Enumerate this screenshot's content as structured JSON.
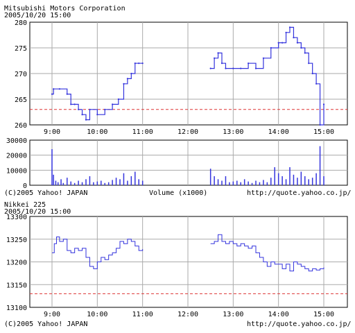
{
  "stock_chart": {
    "title": "Mitsubishi Motors Corporation",
    "date": "2005/10/20 15:00",
    "copyright": "(C)2005 Yahoo! JAPAN",
    "volume_label": "Volume (x1000)",
    "source_url": "http://quote.yahoo.co.jp/"
  },
  "nikkei_chart": {
    "title": "Nikkei 225",
    "date": "2005/10/20 15:00",
    "copyright": "(C)2005 Yahoo! JAPAN",
    "source_url": "http://quote.yahoo.co.jp/"
  },
  "colors": {
    "line": "#3333dd",
    "reference": "#dd3333",
    "grid": "#aaaaaa"
  },
  "chart_data": [
    {
      "type": "line",
      "title": "Mitsubishi Motors Corporation",
      "x_ticks": [
        "9:00",
        "10:00",
        "11:00",
        "12:00",
        "13:00",
        "14:00",
        "15:00"
      ],
      "y_ticks": [
        260,
        265,
        270,
        275,
        280
      ],
      "xlim": [
        "9:00",
        "15:00"
      ],
      "ylim": [
        260,
        280
      ],
      "grid": true,
      "reference_line": 263,
      "series": [
        {
          "segments": [
            [
              [
                "9:00",
                266
              ],
              [
                "9:02",
                267
              ],
              [
                "9:10",
                267
              ],
              [
                "9:20",
                266
              ],
              [
                "9:25",
                264
              ],
              [
                "9:30",
                264
              ],
              [
                "9:35",
                263
              ],
              [
                "9:40",
                262
              ],
              [
                "9:45",
                261
              ],
              [
                "9:50",
                263
              ],
              [
                "10:00",
                262
              ],
              [
                "10:10",
                263
              ],
              [
                "10:20",
                264
              ],
              [
                "10:28",
                265
              ],
              [
                "10:35",
                268
              ],
              [
                "10:40",
                269
              ],
              [
                "10:45",
                270
              ],
              [
                "10:50",
                272
              ],
              [
                "10:55",
                272
              ],
              [
                "11:00",
                272
              ]
            ],
            [
              [
                "12:30",
                271
              ],
              [
                "12:35",
                273
              ],
              [
                "12:40",
                274
              ],
              [
                "12:45",
                272
              ],
              [
                "12:50",
                271
              ],
              [
                "13:00",
                271
              ],
              [
                "13:10",
                271
              ],
              [
                "13:20",
                272
              ],
              [
                "13:30",
                271
              ],
              [
                "13:40",
                273
              ],
              [
                "13:50",
                275
              ],
              [
                "14:00",
                276
              ],
              [
                "14:05",
                276
              ],
              [
                "14:10",
                278
              ],
              [
                "14:15",
                279
              ],
              [
                "14:20",
                277
              ],
              [
                "14:25",
                276
              ],
              [
                "14:30",
                275
              ],
              [
                "14:35",
                274
              ],
              [
                "14:40",
                272
              ],
              [
                "14:45",
                270
              ],
              [
                "14:50",
                268
              ],
              [
                "14:55",
                260
              ],
              [
                "15:00",
                264
              ]
            ]
          ]
        }
      ]
    },
    {
      "type": "bar",
      "title": "Volume (x1000)",
      "y_ticks": [
        0,
        10000,
        20000,
        30000
      ],
      "ylim": [
        0,
        30000
      ],
      "xlim": [
        "9:00",
        "15:00"
      ],
      "grid": true,
      "bars": [
        [
          "9:00",
          24000
        ],
        [
          "9:02",
          7000
        ],
        [
          "9:05",
          3000
        ],
        [
          "9:08",
          2000
        ],
        [
          "9:12",
          4000
        ],
        [
          "9:15",
          1500
        ],
        [
          "9:20",
          5000
        ],
        [
          "9:25",
          2500
        ],
        [
          "9:30",
          1500
        ],
        [
          "9:35",
          3000
        ],
        [
          "9:40",
          2000
        ],
        [
          "9:45",
          4000
        ],
        [
          "9:50",
          6000
        ],
        [
          "9:55",
          2000
        ],
        [
          "10:00",
          2500
        ],
        [
          "10:05",
          3000
        ],
        [
          "10:10",
          1500
        ],
        [
          "10:15",
          2000
        ],
        [
          "10:20",
          3500
        ],
        [
          "10:25",
          5000
        ],
        [
          "10:30",
          4000
        ],
        [
          "10:35",
          8000
        ],
        [
          "10:40",
          3000
        ],
        [
          "10:45",
          6000
        ],
        [
          "10:50",
          9000
        ],
        [
          "10:55",
          4000
        ],
        [
          "11:00",
          3000
        ],
        [
          "12:30",
          11000
        ],
        [
          "12:35",
          6000
        ],
        [
          "12:40",
          4000
        ],
        [
          "12:45",
          3000
        ],
        [
          "12:50",
          6000
        ],
        [
          "12:55",
          2000
        ],
        [
          "13:00",
          2500
        ],
        [
          "13:05",
          3000
        ],
        [
          "13:10",
          2000
        ],
        [
          "13:15",
          4000
        ],
        [
          "13:20",
          2500
        ],
        [
          "13:25",
          1500
        ],
        [
          "13:30",
          3000
        ],
        [
          "13:35",
          2000
        ],
        [
          "13:40",
          3500
        ],
        [
          "13:45",
          2000
        ],
        [
          "13:50",
          5000
        ],
        [
          "13:55",
          12000
        ],
        [
          "14:00",
          8000
        ],
        [
          "14:05",
          6000
        ],
        [
          "14:10",
          4000
        ],
        [
          "14:15",
          12000
        ],
        [
          "14:20",
          7000
        ],
        [
          "14:25",
          5000
        ],
        [
          "14:30",
          9000
        ],
        [
          "14:35",
          6000
        ],
        [
          "14:40",
          4000
        ],
        [
          "14:45",
          5000
        ],
        [
          "14:50",
          8000
        ],
        [
          "14:55",
          26000
        ],
        [
          "15:00",
          6000
        ]
      ]
    },
    {
      "type": "line",
      "title": "Nikkei 225",
      "x_ticks": [
        "9:00",
        "10:00",
        "11:00",
        "12:00",
        "13:00",
        "14:00",
        "15:00"
      ],
      "y_ticks": [
        13100,
        13150,
        13200,
        13250,
        13300
      ],
      "xlim": [
        "9:00",
        "15:00"
      ],
      "ylim": [
        13100,
        13300
      ],
      "grid": true,
      "reference_line": 13130,
      "series": [
        {
          "segments": [
            [
              [
                "9:00",
                13220
              ],
              [
                "9:03",
                13240
              ],
              [
                "9:06",
                13255
              ],
              [
                "9:10",
                13245
              ],
              [
                "9:15",
                13250
              ],
              [
                "9:20",
                13225
              ],
              [
                "9:25",
                13220
              ],
              [
                "9:30",
                13230
              ],
              [
                "9:35",
                13225
              ],
              [
                "9:40",
                13230
              ],
              [
                "9:45",
                13210
              ],
              [
                "9:50",
                13190
              ],
              [
                "9:55",
                13185
              ],
              [
                "10:00",
                13200
              ],
              [
                "10:05",
                13210
              ],
              [
                "10:10",
                13205
              ],
              [
                "10:15",
                13215
              ],
              [
                "10:20",
                13220
              ],
              [
                "10:25",
                13230
              ],
              [
                "10:30",
                13245
              ],
              [
                "10:35",
                13240
              ],
              [
                "10:40",
                13250
              ],
              [
                "10:45",
                13245
              ],
              [
                "10:50",
                13235
              ],
              [
                "10:55",
                13225
              ],
              [
                "11:00",
                13228
              ]
            ],
            [
              [
                "12:30",
                13240
              ],
              [
                "12:35",
                13245
              ],
              [
                "12:40",
                13260
              ],
              [
                "12:45",
                13245
              ],
              [
                "12:50",
                13240
              ],
              [
                "12:55",
                13245
              ],
              [
                "13:00",
                13240
              ],
              [
                "13:05",
                13235
              ],
              [
                "13:10",
                13240
              ],
              [
                "13:15",
                13235
              ],
              [
                "13:20",
                13230
              ],
              [
                "13:25",
                13235
              ],
              [
                "13:30",
                13220
              ],
              [
                "13:35",
                13210
              ],
              [
                "13:40",
                13200
              ],
              [
                "13:45",
                13190
              ],
              [
                "13:50",
                13200
              ],
              [
                "13:55",
                13195
              ],
              [
                "14:00",
                13195
              ],
              [
                "14:05",
                13185
              ],
              [
                "14:10",
                13195
              ],
              [
                "14:15",
                13180
              ],
              [
                "14:20",
                13200
              ],
              [
                "14:25",
                13195
              ],
              [
                "14:30",
                13190
              ],
              [
                "14:35",
                13185
              ],
              [
                "14:40",
                13180
              ],
              [
                "14:45",
                13185
              ],
              [
                "14:50",
                13182
              ],
              [
                "14:55",
                13185
              ],
              [
                "15:00",
                13188
              ]
            ]
          ]
        }
      ]
    }
  ]
}
